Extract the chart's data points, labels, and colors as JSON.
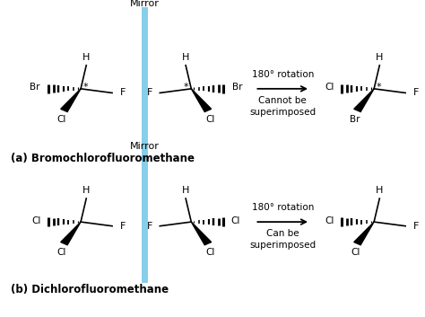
{
  "bg_color": "#ffffff",
  "mirror_color": "#87CEEB",
  "text_color": "#000000",
  "title_a": "(a) Bromochlorofluoromethane",
  "title_b": "(b) Dichlorofluoromethane",
  "mirror_label": "Mirror",
  "rotation_text": "180° rotation",
  "cannot_text": "Cannot be\nsuperimposed",
  "can_text": "Can be\nsuperimposed",
  "fig_w": 4.74,
  "fig_h": 3.53,
  "dpi": 100
}
